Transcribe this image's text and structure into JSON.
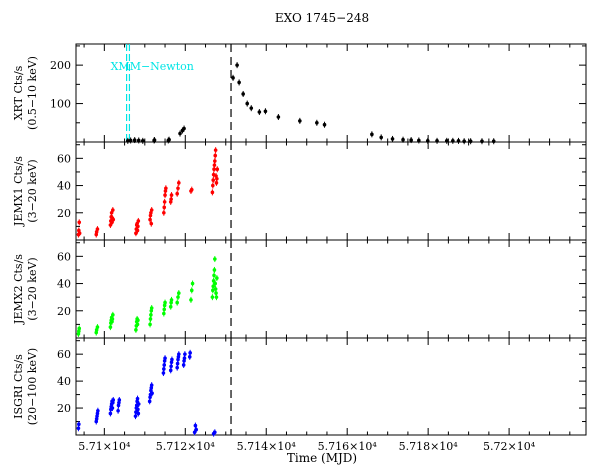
{
  "chart_data": {
    "type": "scatter",
    "title": "EXO 1745−248",
    "xlabel": "Time (MJD)",
    "x_ticks": [
      57100,
      57120,
      57140,
      57160,
      57180,
      57200
    ],
    "x_tick_labels": [
      "5.71×10⁴",
      "5.712×10⁴",
      "5.714×10⁴",
      "5.716×10⁴",
      "5.718×10⁴",
      "5.72×10⁴"
    ],
    "xlim": [
      57093,
      57219
    ],
    "vertical_line_x": 57131.3,
    "panels": [
      {
        "id": "xrt",
        "ylabel": [
          "XRT Cts/s",
          "(0.5−10 keV)"
        ],
        "ylim": [
          0,
          255
        ],
        "yticks": [
          100,
          200
        ],
        "color": "#000000",
        "annotation": {
          "text": "XMM−Newton",
          "x": [
            57105.5,
            57106.2
          ],
          "color": "#00e5e5"
        },
        "points": [
          [
            57105.8,
            3
          ],
          [
            57106.5,
            4
          ],
          [
            57107.5,
            5
          ],
          [
            57108.5,
            4
          ],
          [
            57109.5,
            3
          ],
          [
            57112.3,
            4
          ],
          [
            57112.4,
            5
          ],
          [
            57115.8,
            4
          ],
          [
            57116.0,
            6
          ],
          [
            57118.7,
            22
          ],
          [
            57119.3,
            30
          ],
          [
            57119.7,
            35
          ],
          [
            57131.8,
            167
          ],
          [
            57132.8,
            200
          ],
          [
            57133.3,
            155
          ],
          [
            57134.3,
            125
          ],
          [
            57135.3,
            100
          ],
          [
            57136.3,
            88
          ],
          [
            57138.3,
            78
          ],
          [
            57139.8,
            80
          ],
          [
            57143.0,
            65
          ],
          [
            57148.3,
            55
          ],
          [
            57152.5,
            50
          ],
          [
            57154.4,
            45
          ],
          [
            57166.1,
            20
          ],
          [
            57168.4,
            12
          ],
          [
            57171.2,
            8
          ],
          [
            57173.8,
            6
          ],
          [
            57175.8,
            5
          ],
          [
            57177.7,
            4
          ],
          [
            57179.9,
            3
          ],
          [
            57182.2,
            3
          ],
          [
            57184.6,
            3
          ],
          [
            57186.1,
            3
          ],
          [
            57187.5,
            3
          ],
          [
            57188.9,
            2
          ],
          [
            57190.5,
            2
          ],
          [
            57193.3,
            2
          ],
          [
            57196.2,
            2
          ]
        ]
      },
      {
        "id": "jemx1",
        "ylabel": [
          "JEMX1 Cts/s",
          "(3−20 keV)"
        ],
        "ylim": [
          0,
          72
        ],
        "yticks": [
          20,
          40,
          60
        ],
        "color": "#ff0000",
        "points": [
          [
            57093.6,
            4
          ],
          [
            57093.7,
            7
          ],
          [
            57093.8,
            13
          ],
          [
            57093.9,
            5
          ],
          [
            57098.0,
            4
          ],
          [
            57098.1,
            6
          ],
          [
            57098.3,
            8
          ],
          [
            57101.5,
            11
          ],
          [
            57101.6,
            14
          ],
          [
            57101.7,
            17
          ],
          [
            57101.8,
            20
          ],
          [
            57101.9,
            13
          ],
          [
            57102.0,
            16
          ],
          [
            57102.1,
            22
          ],
          [
            57102.2,
            15
          ],
          [
            57107.8,
            5
          ],
          [
            57107.9,
            8
          ],
          [
            57108.0,
            11
          ],
          [
            57108.1,
            12
          ],
          [
            57108.2,
            7
          ],
          [
            57108.3,
            10
          ],
          [
            57108.4,
            14
          ],
          [
            57111.3,
            15
          ],
          [
            57111.4,
            18
          ],
          [
            57111.5,
            20
          ],
          [
            57111.6,
            12
          ],
          [
            57111.7,
            22
          ],
          [
            57114.7,
            20
          ],
          [
            57114.8,
            24
          ],
          [
            57114.9,
            28
          ],
          [
            57115.0,
            33
          ],
          [
            57115.1,
            36
          ],
          [
            57115.2,
            38
          ],
          [
            57116.4,
            28
          ],
          [
            57116.5,
            30
          ],
          [
            57116.6,
            33
          ],
          [
            57118.0,
            34
          ],
          [
            57118.2,
            38
          ],
          [
            57118.4,
            42
          ],
          [
            57121.4,
            36
          ],
          [
            57121.6,
            37
          ],
          [
            57126.7,
            35
          ],
          [
            57126.8,
            40
          ],
          [
            57126.9,
            44
          ],
          [
            57127.0,
            48
          ],
          [
            57127.1,
            52
          ],
          [
            57127.2,
            55
          ],
          [
            57127.3,
            58
          ],
          [
            57127.4,
            62
          ],
          [
            57127.5,
            66
          ],
          [
            57127.6,
            47
          ],
          [
            57127.7,
            42
          ],
          [
            57127.8,
            45
          ],
          [
            57127.9,
            52
          ]
        ]
      },
      {
        "id": "jemx2",
        "ylabel": [
          "JEMX2 Cts/s",
          "(3−20 keV)"
        ],
        "ylim": [
          0,
          72
        ],
        "yticks": [
          20,
          40,
          60
        ],
        "color": "#00ff00",
        "points": [
          [
            57093.6,
            3
          ],
          [
            57093.7,
            5
          ],
          [
            57093.8,
            7
          ],
          [
            57098.0,
            4
          ],
          [
            57098.1,
            6
          ],
          [
            57098.3,
            8
          ],
          [
            57101.5,
            8
          ],
          [
            57101.6,
            11
          ],
          [
            57101.7,
            13
          ],
          [
            57101.8,
            15
          ],
          [
            57101.9,
            12
          ],
          [
            57102.0,
            14
          ],
          [
            57102.1,
            17
          ],
          [
            57107.8,
            6
          ],
          [
            57107.9,
            9
          ],
          [
            57108.0,
            12
          ],
          [
            57108.1,
            14
          ],
          [
            57108.2,
            10
          ],
          [
            57108.3,
            13
          ],
          [
            57111.3,
            10
          ],
          [
            57111.4,
            14
          ],
          [
            57111.5,
            17
          ],
          [
            57111.6,
            20
          ],
          [
            57111.7,
            22
          ],
          [
            57114.7,
            18
          ],
          [
            57114.8,
            21
          ],
          [
            57114.9,
            24
          ],
          [
            57115.0,
            26
          ],
          [
            57116.4,
            23
          ],
          [
            57116.5,
            26
          ],
          [
            57116.6,
            28
          ],
          [
            57118.0,
            26
          ],
          [
            57118.2,
            30
          ],
          [
            57118.4,
            33
          ],
          [
            57121.4,
            28
          ],
          [
            57121.6,
            35
          ],
          [
            57121.8,
            40
          ],
          [
            57126.7,
            30
          ],
          [
            57126.8,
            35
          ],
          [
            57126.9,
            38
          ],
          [
            57127.0,
            42
          ],
          [
            57127.1,
            46
          ],
          [
            57127.2,
            50
          ],
          [
            57127.3,
            58
          ],
          [
            57127.4,
            40
          ],
          [
            57127.5,
            36
          ],
          [
            57127.6,
            33
          ],
          [
            57127.7,
            30
          ],
          [
            57127.8,
            44
          ]
        ]
      },
      {
        "id": "isgri",
        "ylabel": [
          "ISGRI Cts/s",
          "(20−100 keV)"
        ],
        "ylim": [
          0,
          72
        ],
        "yticks": [
          20,
          40,
          60
        ],
        "color": "#0000ff",
        "points": [
          [
            57093.6,
            5
          ],
          [
            57093.7,
            8
          ],
          [
            57098.0,
            10
          ],
          [
            57098.1,
            12
          ],
          [
            57098.2,
            14
          ],
          [
            57098.3,
            16
          ],
          [
            57098.4,
            18
          ],
          [
            57101.5,
            16
          ],
          [
            57101.6,
            19
          ],
          [
            57101.7,
            21
          ],
          [
            57101.8,
            23
          ],
          [
            57101.9,
            25
          ],
          [
            57102.0,
            20
          ],
          [
            57102.1,
            24
          ],
          [
            57102.2,
            26
          ],
          [
            57103.4,
            18
          ],
          [
            57103.5,
            22
          ],
          [
            57103.6,
            24
          ],
          [
            57103.7,
            26
          ],
          [
            57107.7,
            14
          ],
          [
            57107.8,
            17
          ],
          [
            57107.9,
            20
          ],
          [
            57108.0,
            22
          ],
          [
            57108.1,
            25
          ],
          [
            57108.2,
            27
          ],
          [
            57108.3,
            19
          ],
          [
            57108.4,
            16
          ],
          [
            57108.5,
            23
          ],
          [
            57111.2,
            25
          ],
          [
            57111.3,
            28
          ],
          [
            57111.4,
            30
          ],
          [
            57111.5,
            33
          ],
          [
            57111.6,
            35
          ],
          [
            57111.7,
            37
          ],
          [
            57111.8,
            31
          ],
          [
            57114.6,
            46
          ],
          [
            57114.7,
            49
          ],
          [
            57114.8,
            52
          ],
          [
            57114.9,
            55
          ],
          [
            57115.0,
            57
          ],
          [
            57116.4,
            48
          ],
          [
            57116.5,
            51
          ],
          [
            57116.6,
            54
          ],
          [
            57116.7,
            56
          ],
          [
            57118.0,
            50
          ],
          [
            57118.1,
            53
          ],
          [
            57118.2,
            56
          ],
          [
            57118.3,
            58
          ],
          [
            57118.4,
            60
          ],
          [
            57119.6,
            52
          ],
          [
            57119.7,
            55
          ],
          [
            57119.8,
            57
          ],
          [
            57119.9,
            60
          ],
          [
            57121.1,
            58
          ],
          [
            57121.2,
            61
          ],
          [
            57122.3,
            2
          ],
          [
            57122.5,
            7
          ],
          [
            57122.7,
            4
          ],
          [
            57127.0,
            1
          ],
          [
            57127.3,
            2
          ]
        ]
      }
    ]
  }
}
